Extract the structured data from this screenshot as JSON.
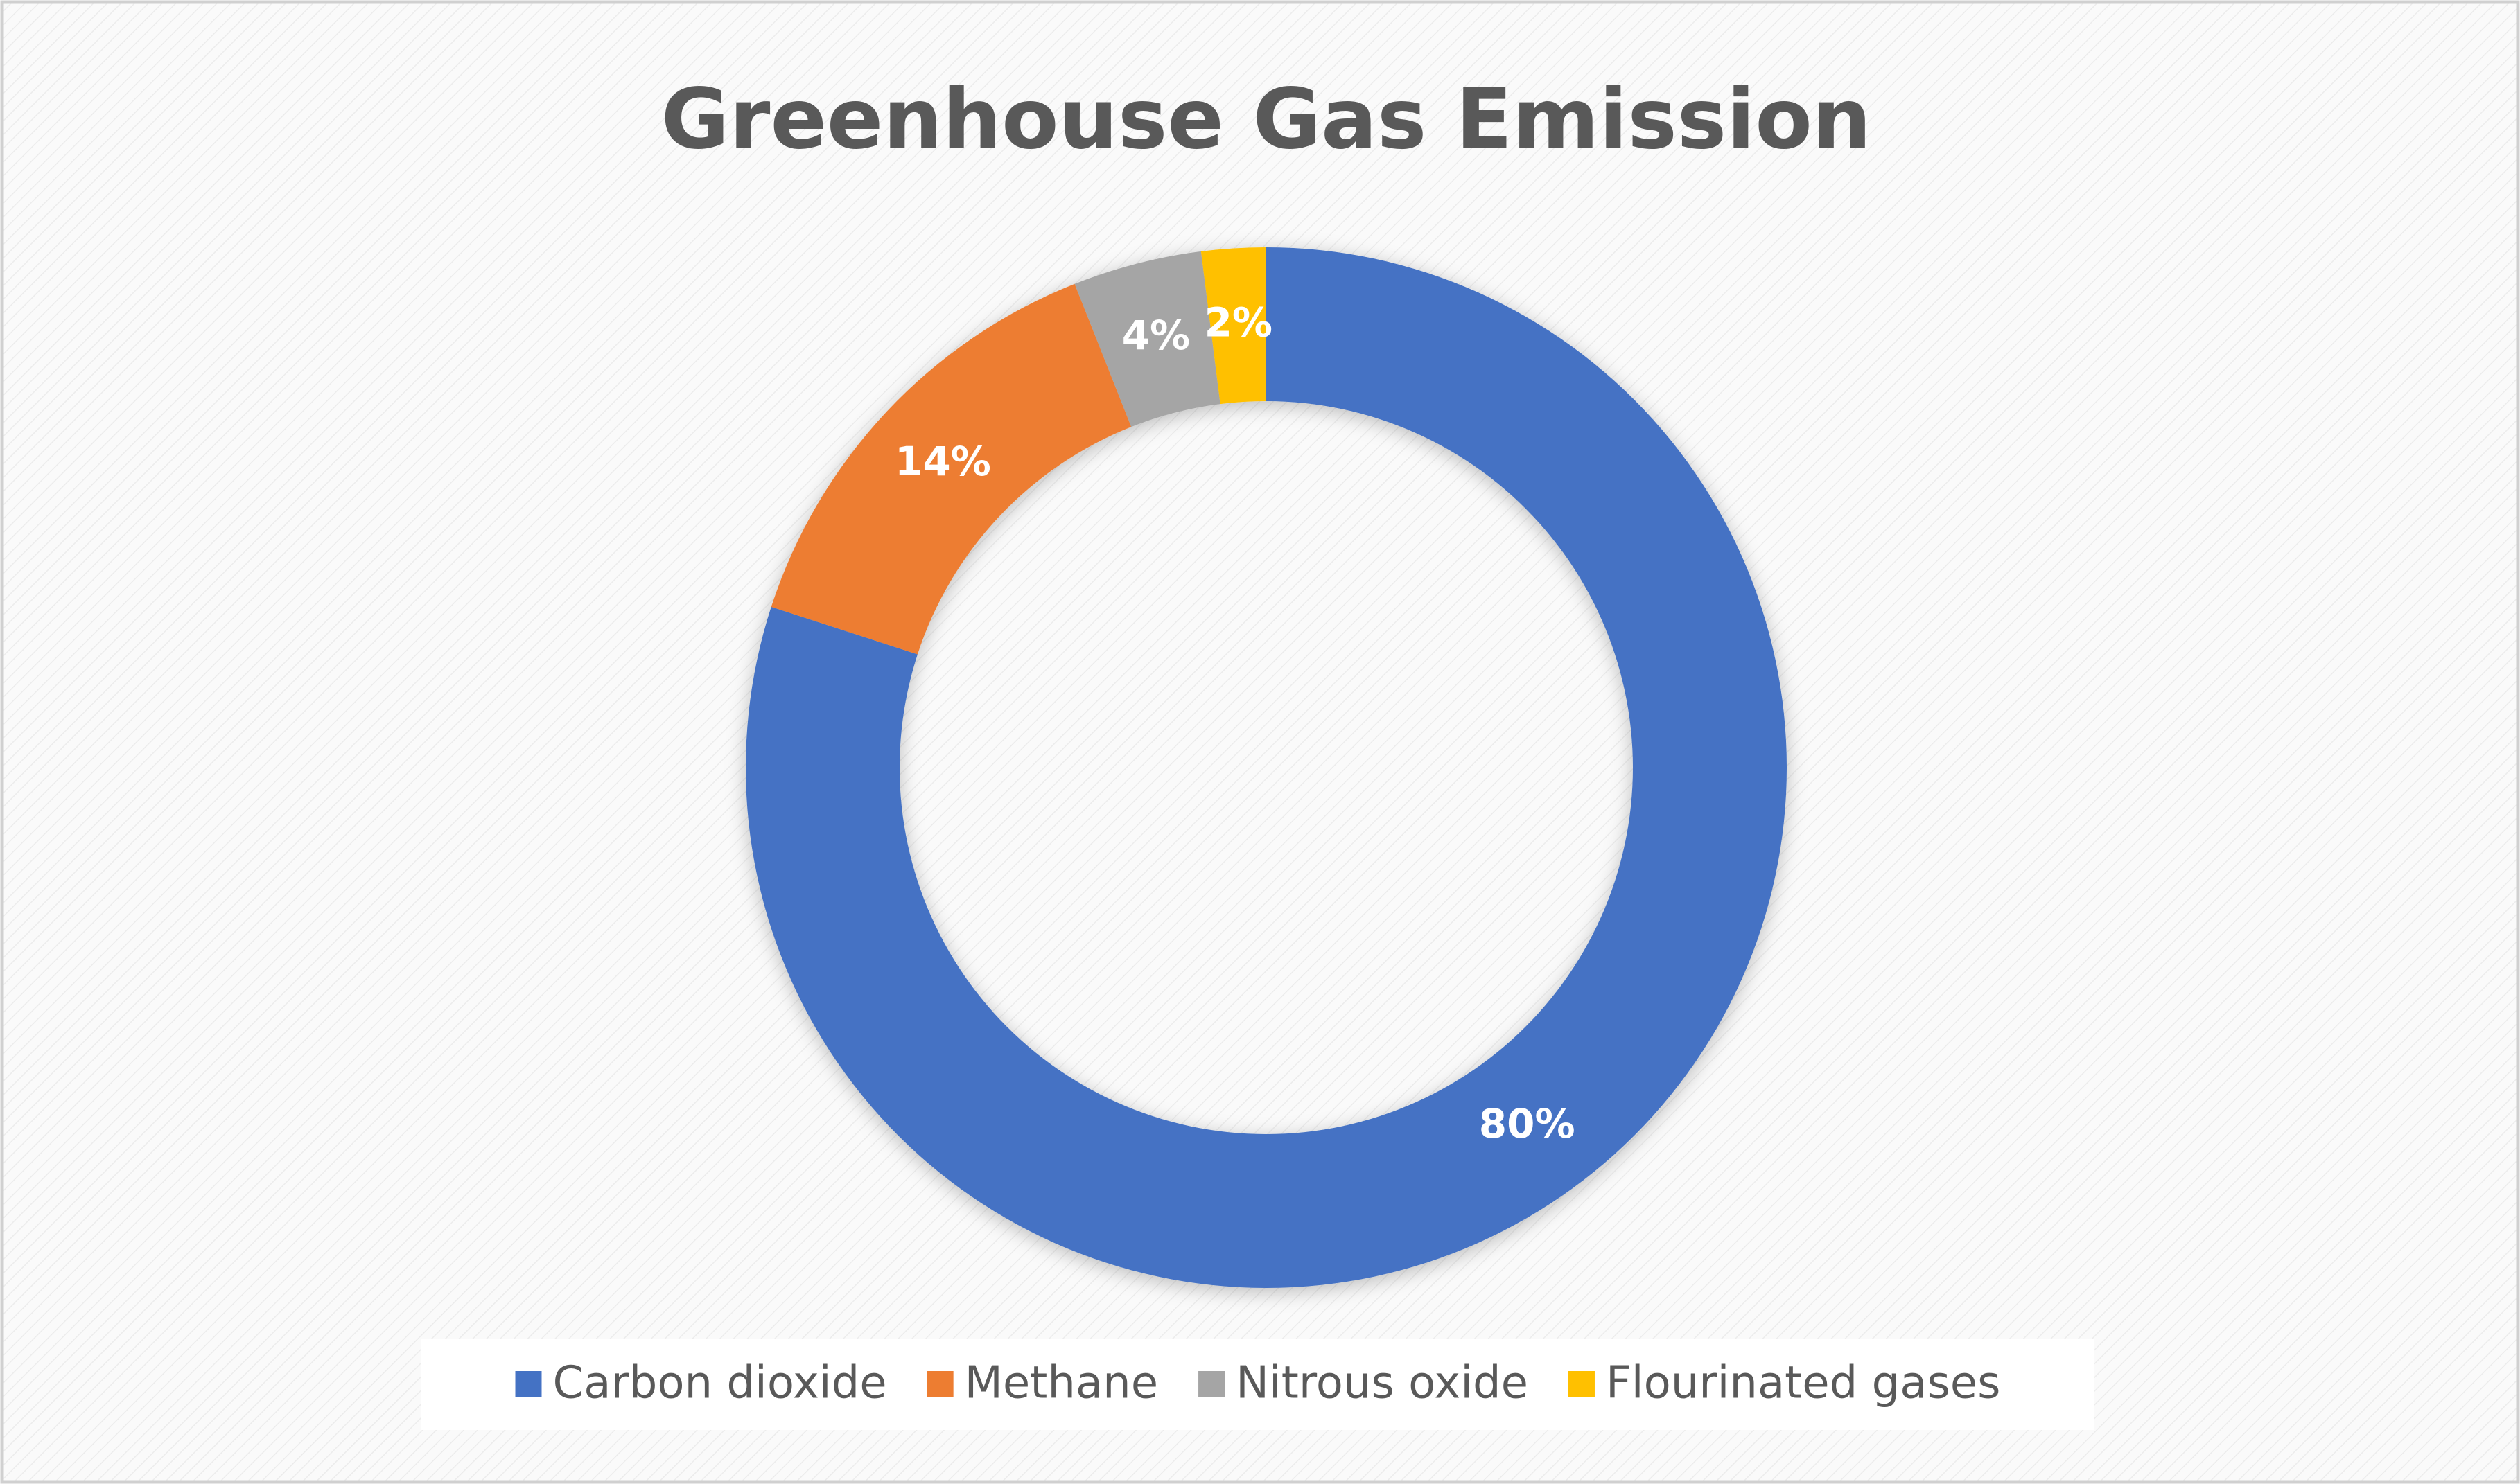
{
  "chart_data": {
    "type": "donut",
    "title": "Greenhouse Gas Emission",
    "categories": [
      "Carbon dioxide",
      "Methane",
      "Nitrous oxide",
      "Flourinated gases"
    ],
    "values": [
      80,
      14,
      4,
      2
    ],
    "value_labels": [
      "80%",
      "14%",
      "4%",
      "2%"
    ],
    "colors": [
      "#4472c4",
      "#ed7d31",
      "#a5a5a5",
      "#ffc000"
    ],
    "legend": "bottom"
  }
}
